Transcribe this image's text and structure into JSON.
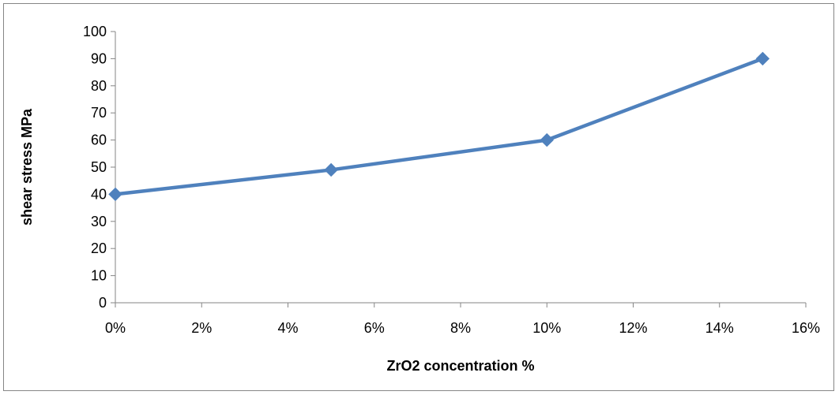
{
  "chart_data": {
    "type": "line",
    "title": "",
    "xlabel": "ZrO2 concentration %",
    "ylabel": "shear stress MPa",
    "x_ticks": [
      "0%",
      "2%",
      "4%",
      "6%",
      "8%",
      "10%",
      "12%",
      "14%",
      "16%"
    ],
    "y_ticks": [
      "0",
      "10",
      "20",
      "30",
      "40",
      "50",
      "60",
      "70",
      "80",
      "90",
      "100"
    ],
    "xlim": [
      0,
      16
    ],
    "ylim": [
      0,
      100
    ],
    "grid": false,
    "legend": "none",
    "series": [
      {
        "x": [
          0,
          5,
          10,
          15
        ],
        "y": [
          40,
          49,
          60,
          90
        ],
        "color": "#4f81bd",
        "marker": "diamond"
      }
    ]
  }
}
